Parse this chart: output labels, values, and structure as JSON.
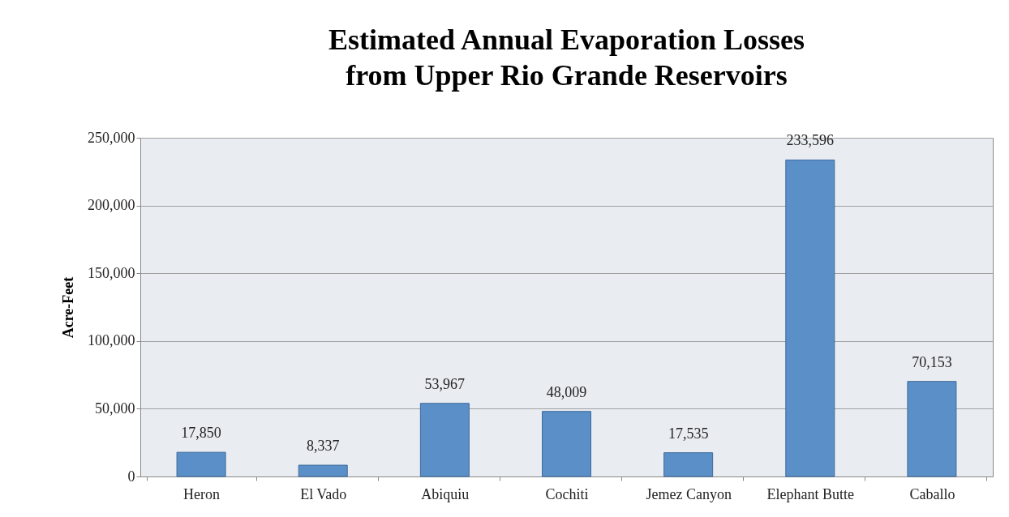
{
  "chart_data": {
    "type": "bar",
    "title": [
      "Estimated Annual Evaporation Losses",
      "from Upper Rio Grande Reservoirs"
    ],
    "ylabel": "Acre-Feet",
    "categories": [
      "Heron",
      "El Vado",
      "Abiquiu",
      "Cochiti",
      "Jemez Canyon",
      "Elephant Butte",
      "Caballo"
    ],
    "values": [
      17850,
      8337,
      53967,
      48009,
      17535,
      233596,
      70153
    ],
    "value_labels": [
      "17,850",
      "8,337",
      "53,967",
      "48,009",
      "17,535",
      "233,596",
      "70,153"
    ],
    "color": "#5b8fc7",
    "ylim": [
      0,
      250000
    ],
    "yticks": [
      0,
      {
        "value": 50000,
        "label": "50,000"
      },
      {
        "value": 100000,
        "label": "100,000"
      },
      {
        "value": 150000,
        "label": "150,000"
      },
      {
        "value": 200000,
        "label": "200,000"
      },
      {
        "value": 250000,
        "label": "250,000"
      }
    ],
    "grid": "y"
  }
}
